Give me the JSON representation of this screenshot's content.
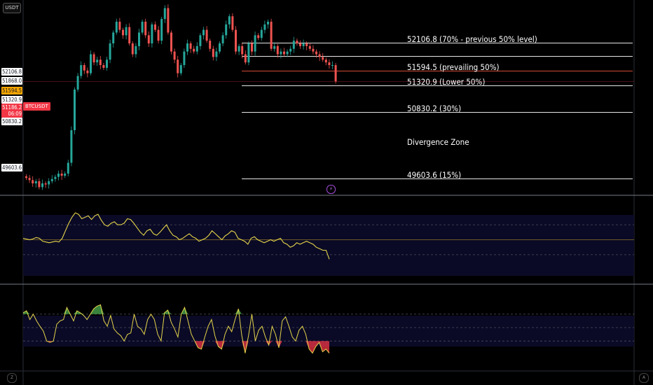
{
  "toolbar": {
    "currency_label": "USDT"
  },
  "symbol": {
    "ticker": "BTCUSDT"
  },
  "price_axis": {
    "pills": [
      {
        "text": "52106.8",
        "style": "white"
      },
      {
        "text": "51868.0",
        "style": "white"
      },
      {
        "text": "51594.5",
        "style": "orange"
      },
      {
        "text": "51320.9",
        "style": "white"
      },
      {
        "text": "51186.2",
        "style": "red"
      },
      {
        "text": "06:09",
        "style": "red"
      },
      {
        "text": "50830.2",
        "style": "white"
      },
      {
        "text": "49603.6",
        "style": "white"
      }
    ]
  },
  "levels": [
    {
      "price": 52106.8,
      "label": "52106.8 (70% - previous 50% level)",
      "color": "#ffffff"
    },
    {
      "price": 51868.0,
      "label": "",
      "color": "#ffffff"
    },
    {
      "price": 51594.5,
      "label": "51594.5 (prevailing 50%)",
      "color": "#e8533a"
    },
    {
      "price": 51320.9,
      "label": "51320.9 (Lower 50%)",
      "color": "#ffffff"
    },
    {
      "price": 50830.2,
      "label": "50830.2 (30%)",
      "color": "#ffffff"
    },
    {
      "price": 49603.6,
      "label": "49603.6 (15%)",
      "color": "#ffffff"
    }
  ],
  "annotations": {
    "divergence_zone": "Divergence Zone"
  },
  "bottom_bar": {
    "left_icon": "Z",
    "right_icon": "A"
  },
  "colors": {
    "up": "#26a69a",
    "down": "#ef5350",
    "rsi": "#e5d44a",
    "osc_up": "#4caf50",
    "osc_down": "#f23645"
  },
  "chart_data": [
    {
      "type": "candlestick",
      "y_range": [
        49300,
        52900
      ],
      "close": [
        49620,
        49580,
        49520,
        49560,
        49450,
        49520,
        49500,
        49560,
        49600,
        49640,
        49700,
        49660,
        49700,
        49900,
        50500,
        51250,
        51500,
        51700,
        51600,
        51550,
        51900,
        51750,
        51800,
        51700,
        51650,
        51800,
        52100,
        52300,
        52500,
        52350,
        52250,
        52400,
        52100,
        51900,
        52050,
        52300,
        52500,
        52250,
        52100,
        52450,
        52350,
        52150,
        52550,
        52750,
        52300,
        51950,
        51800,
        51550,
        51700,
        51950,
        52100,
        52000,
        51950,
        52050,
        52250,
        52350,
        52150,
        52000,
        51850,
        51950,
        52100,
        52250,
        52450,
        52600,
        52350,
        51950,
        52050,
        51900,
        51750,
        52100,
        51950,
        52250,
        52200,
        52350,
        52450,
        52500,
        52000,
        52050,
        51900,
        51950,
        51900,
        51950,
        52000,
        52150,
        52100,
        52050,
        52100,
        52050,
        52000,
        51950,
        51900,
        51850,
        51800,
        51750,
        51700,
        51700,
        51400
      ]
    },
    {
      "type": "line",
      "name": "",
      "y_range": [
        0,
        100
      ],
      "bands": [
        30,
        50,
        70
      ],
      "values": [
        52,
        51,
        50,
        51,
        53,
        52,
        48,
        47,
        46,
        47,
        48,
        47,
        52,
        62,
        72,
        80,
        86,
        84,
        78,
        80,
        82,
        77,
        82,
        84,
        76,
        70,
        68,
        72,
        74,
        70,
        70,
        72,
        78,
        77,
        72,
        66,
        60,
        56,
        62,
        64,
        58,
        56,
        60,
        65,
        70,
        62,
        56,
        54,
        50,
        52,
        55,
        58,
        54,
        52,
        48,
        50,
        52,
        56,
        62,
        58,
        54,
        50,
        55,
        58,
        62,
        60,
        52,
        50,
        48,
        44,
        52,
        54,
        50,
        48,
        46,
        48,
        50,
        48,
        50,
        52,
        46,
        44,
        40,
        42,
        46,
        44,
        46,
        48,
        46,
        44,
        40,
        38,
        36,
        36,
        24
      ]
    },
    {
      "type": "area",
      "name": "",
      "y_range": [
        0,
        100
      ],
      "bands": [
        30,
        50,
        70
      ],
      "values": [
        72,
        75,
        62,
        70,
        60,
        52,
        45,
        30,
        28,
        30,
        55,
        60,
        62,
        80,
        70,
        60,
        75,
        72,
        68,
        62,
        70,
        78,
        82,
        84,
        60,
        52,
        68,
        48,
        42,
        38,
        30,
        40,
        42,
        70,
        52,
        48,
        40,
        62,
        70,
        62,
        40,
        30,
        72,
        76,
        58,
        48,
        36,
        70,
        80,
        60,
        40,
        30,
        20,
        18,
        36,
        52,
        62,
        38,
        22,
        18,
        40,
        52,
        44,
        62,
        78,
        38,
        12,
        38,
        70,
        30,
        46,
        52,
        36,
        24,
        52,
        40,
        20,
        60,
        66,
        52,
        36,
        30,
        46,
        52,
        40,
        18,
        12,
        22,
        28,
        14,
        18,
        12
      ]
    }
  ]
}
